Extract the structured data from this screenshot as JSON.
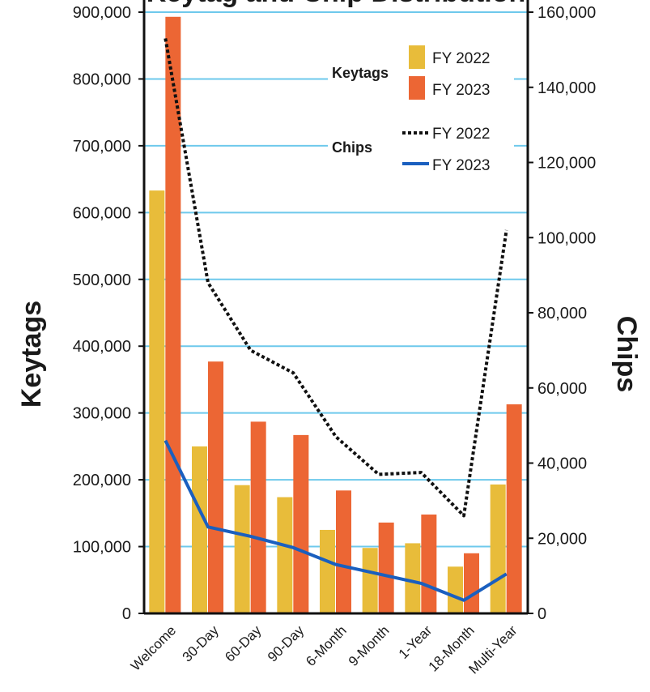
{
  "chart_data": {
    "type": "bar",
    "title": "Keytag and Chip Distribution",
    "categories": [
      "Welcome",
      "30-Day",
      "60-Day",
      "90-Day",
      "6-Month",
      "9-Month",
      "1-Year",
      "18-Month",
      "Multi-Year"
    ],
    "bar_series": [
      {
        "name": "FY 2022",
        "values": [
          633000,
          250000,
          192000,
          174000,
          125000,
          98000,
          105000,
          70000,
          193000
        ],
        "color": "#e8bc3a"
      },
      {
        "name": "FY 2023",
        "values": [
          893000,
          377000,
          287000,
          267000,
          184000,
          136000,
          148000,
          90000,
          313000
        ],
        "color": "#ec6634"
      }
    ],
    "line_series": [
      {
        "name": "FY 2022",
        "values": [
          153000,
          88000,
          70000,
          64000,
          47000,
          37000,
          37500,
          26000,
          102000
        ],
        "color": "#111111",
        "style": "dotted"
      },
      {
        "name": "FY 2023",
        "values": [
          46000,
          23000,
          20500,
          17500,
          13000,
          10500,
          8000,
          3500,
          10500
        ],
        "color": "#1a5fbf",
        "style": "solid"
      }
    ],
    "y_left": {
      "label": "Keytags",
      "min": 0,
      "max": 900000,
      "ticks": [
        "0",
        "100,000",
        "200,000",
        "300,000",
        "400,000",
        "500,000",
        "600,000",
        "700,000",
        "800,000",
        "900,000"
      ]
    },
    "y_right": {
      "label": "Chips",
      "min": 0,
      "max": 160000,
      "ticks": [
        "0",
        "20,000",
        "40,000",
        "60,000",
        "80,000",
        "100,000",
        "120,000",
        "140,000",
        "160,000"
      ]
    },
    "legend": {
      "keytags_label": "Keytags",
      "chips_label": "Chips",
      "placement": "top-right"
    },
    "grid": true,
    "grid_color": "#6ec9ec"
  }
}
